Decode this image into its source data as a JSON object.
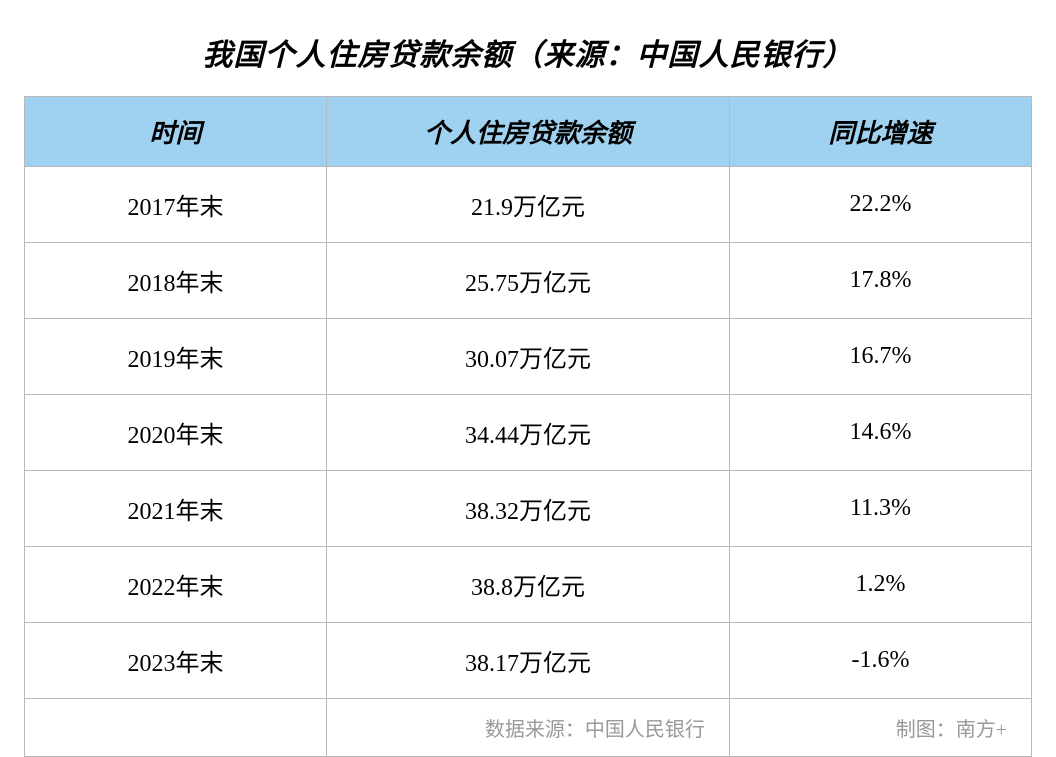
{
  "title": "我国个人住房贷款余额（来源：中国人民银行）",
  "table": {
    "columns": [
      "时间",
      "个人住房贷款余额",
      "同比增速"
    ],
    "column_widths": [
      "30%",
      "40%",
      "30%"
    ],
    "rows": [
      [
        "2017年末",
        "21.9万亿元",
        "22.2%"
      ],
      [
        "2018年末",
        "25.75万亿元",
        "17.8%"
      ],
      [
        "2019年末",
        "30.07万亿元",
        "16.7%"
      ],
      [
        "2020年末",
        "34.44万亿元",
        "14.6%"
      ],
      [
        "2021年末",
        "38.32万亿元",
        "11.3%"
      ],
      [
        "2022年末",
        "38.8万亿元",
        "1.2%"
      ],
      [
        "2023年末",
        "38.17万亿元",
        "-1.6%"
      ]
    ],
    "footer": {
      "source_label": "数据来源：中国人民银行",
      "chart_by_label": "制图：南方+"
    }
  },
  "styling": {
    "header_bg": "#9fd2f0",
    "border_color": "#b8b8b8",
    "text_color": "#000000",
    "footer_text_color": "#999999",
    "background": "#ffffff",
    "title_fontsize": 30,
    "header_fontsize": 26,
    "cell_fontsize": 24,
    "footer_fontsize": 20
  }
}
